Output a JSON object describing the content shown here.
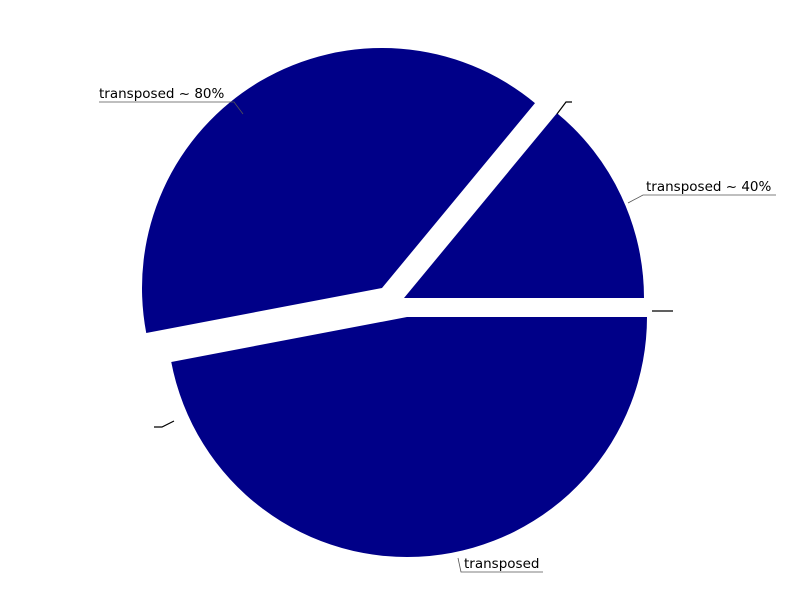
{
  "chart_data": {
    "type": "pie",
    "exploded": true,
    "slices": [
      {
        "label": "transposed ~ 40%",
        "value": 14,
        "color": "#000088"
      },
      {
        "label": "transposed ~ 80%",
        "value": 39,
        "color": "#000088"
      },
      {
        "label": "transposed",
        "value": 47,
        "color": "#000088"
      }
    ],
    "extra_tick_marks": 2
  }
}
